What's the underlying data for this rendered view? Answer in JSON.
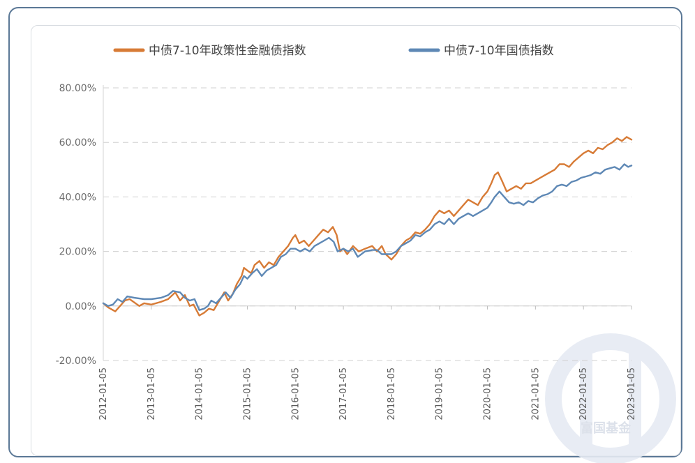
{
  "colors": {
    "policy_series": "#d77b36",
    "treasury_series": "#5e88b5",
    "grid": "#d0d0d0",
    "watermark": "#e4e8f0"
  },
  "watermark": {
    "icon": "fuguo-logo-icon",
    "text": "富国基金"
  },
  "chart_data": {
    "type": "line",
    "title": "",
    "xlabel": "",
    "ylabel": "",
    "ylim": [
      -0.2,
      0.8
    ],
    "yticks": [
      -0.2,
      0.0,
      0.2,
      0.4,
      0.6,
      0.8
    ],
    "ytick_labels": [
      "-20.00%",
      "0.00%",
      "20.00%",
      "40.00%",
      "60.00%",
      "80.00%"
    ],
    "y_format": "percent",
    "xlim": [
      2012.0,
      2023.0
    ],
    "xticks": [
      "2012-01-05",
      "2013-01-05",
      "2014-01-05",
      "2015-01-05",
      "2016-01-05",
      "2017-01-05",
      "2018-01-05",
      "2019-01-05",
      "2020-01-05",
      "2021-01-05",
      "2022-01-05",
      "2023-01-05"
    ],
    "grid": "horizontal-dashed",
    "legend_position": "top",
    "series": [
      {
        "name": "中债7-10年政策性金融债指数",
        "color": "#d77b36",
        "points": [
          [
            2012.0,
            0.01
          ],
          [
            2012.1,
            -0.005
          ],
          [
            2012.25,
            -0.02
          ],
          [
            2012.45,
            0.02
          ],
          [
            2012.55,
            0.025
          ],
          [
            2012.75,
            0.0
          ],
          [
            2012.85,
            0.01
          ],
          [
            2013.0,
            0.005
          ],
          [
            2013.2,
            0.015
          ],
          [
            2013.35,
            0.025
          ],
          [
            2013.5,
            0.05
          ],
          [
            2013.6,
            0.02
          ],
          [
            2013.7,
            0.04
          ],
          [
            2013.8,
            0.0
          ],
          [
            2013.88,
            0.005
          ],
          [
            2014.0,
            -0.035
          ],
          [
            2014.1,
            -0.025
          ],
          [
            2014.2,
            -0.01
          ],
          [
            2014.3,
            -0.015
          ],
          [
            2014.42,
            0.02
          ],
          [
            2014.52,
            0.05
          ],
          [
            2014.6,
            0.02
          ],
          [
            2014.7,
            0.045
          ],
          [
            2014.78,
            0.08
          ],
          [
            2014.88,
            0.11
          ],
          [
            2014.93,
            0.14
          ],
          [
            2015.0,
            0.13
          ],
          [
            2015.08,
            0.12
          ],
          [
            2015.15,
            0.15
          ],
          [
            2015.25,
            0.165
          ],
          [
            2015.35,
            0.14
          ],
          [
            2015.45,
            0.16
          ],
          [
            2015.55,
            0.15
          ],
          [
            2015.65,
            0.18
          ],
          [
            2015.75,
            0.2
          ],
          [
            2015.85,
            0.22
          ],
          [
            2015.95,
            0.25
          ],
          [
            2016.0,
            0.26
          ],
          [
            2016.08,
            0.23
          ],
          [
            2016.18,
            0.24
          ],
          [
            2016.28,
            0.22
          ],
          [
            2016.38,
            0.24
          ],
          [
            2016.48,
            0.26
          ],
          [
            2016.58,
            0.28
          ],
          [
            2016.68,
            0.27
          ],
          [
            2016.78,
            0.29
          ],
          [
            2016.86,
            0.26
          ],
          [
            2016.93,
            0.2
          ],
          [
            2017.0,
            0.21
          ],
          [
            2017.08,
            0.19
          ],
          [
            2017.2,
            0.22
          ],
          [
            2017.32,
            0.2
          ],
          [
            2017.45,
            0.21
          ],
          [
            2017.6,
            0.22
          ],
          [
            2017.7,
            0.2
          ],
          [
            2017.8,
            0.22
          ],
          [
            2017.88,
            0.19
          ],
          [
            2018.0,
            0.17
          ],
          [
            2018.1,
            0.19
          ],
          [
            2018.2,
            0.22
          ],
          [
            2018.3,
            0.24
          ],
          [
            2018.4,
            0.25
          ],
          [
            2018.5,
            0.27
          ],
          [
            2018.6,
            0.265
          ],
          [
            2018.7,
            0.28
          ],
          [
            2018.8,
            0.3
          ],
          [
            2018.9,
            0.33
          ],
          [
            2019.0,
            0.35
          ],
          [
            2019.1,
            0.34
          ],
          [
            2019.2,
            0.35
          ],
          [
            2019.3,
            0.33
          ],
          [
            2019.4,
            0.35
          ],
          [
            2019.5,
            0.37
          ],
          [
            2019.6,
            0.39
          ],
          [
            2019.7,
            0.38
          ],
          [
            2019.8,
            0.37
          ],
          [
            2019.9,
            0.4
          ],
          [
            2020.0,
            0.42
          ],
          [
            2020.08,
            0.45
          ],
          [
            2020.15,
            0.48
          ],
          [
            2020.22,
            0.49
          ],
          [
            2020.3,
            0.46
          ],
          [
            2020.4,
            0.42
          ],
          [
            2020.5,
            0.43
          ],
          [
            2020.6,
            0.44
          ],
          [
            2020.7,
            0.43
          ],
          [
            2020.8,
            0.45
          ],
          [
            2020.9,
            0.45
          ],
          [
            2021.0,
            0.46
          ],
          [
            2021.1,
            0.47
          ],
          [
            2021.2,
            0.48
          ],
          [
            2021.3,
            0.49
          ],
          [
            2021.4,
            0.5
          ],
          [
            2021.5,
            0.52
          ],
          [
            2021.6,
            0.52
          ],
          [
            2021.7,
            0.51
          ],
          [
            2021.8,
            0.53
          ],
          [
            2021.9,
            0.545
          ],
          [
            2022.0,
            0.56
          ],
          [
            2022.1,
            0.57
          ],
          [
            2022.2,
            0.56
          ],
          [
            2022.3,
            0.58
          ],
          [
            2022.4,
            0.575
          ],
          [
            2022.5,
            0.59
          ],
          [
            2022.6,
            0.6
          ],
          [
            2022.7,
            0.615
          ],
          [
            2022.8,
            0.605
          ],
          [
            2022.9,
            0.62
          ],
          [
            2023.0,
            0.61
          ]
        ]
      },
      {
        "name": "中债7-10年国债指数",
        "color": "#5e88b5",
        "points": [
          [
            2012.0,
            0.01
          ],
          [
            2012.1,
            0.0
          ],
          [
            2012.2,
            0.005
          ],
          [
            2012.3,
            0.025
          ],
          [
            2012.4,
            0.015
          ],
          [
            2012.5,
            0.035
          ],
          [
            2012.65,
            0.03
          ],
          [
            2012.85,
            0.025
          ],
          [
            2013.0,
            0.025
          ],
          [
            2013.2,
            0.03
          ],
          [
            2013.35,
            0.04
          ],
          [
            2013.45,
            0.055
          ],
          [
            2013.6,
            0.05
          ],
          [
            2013.7,
            0.03
          ],
          [
            2013.8,
            0.02
          ],
          [
            2013.9,
            0.025
          ],
          [
            2014.0,
            -0.015
          ],
          [
            2014.1,
            -0.01
          ],
          [
            2014.18,
            0.0
          ],
          [
            2014.25,
            0.02
          ],
          [
            2014.35,
            0.01
          ],
          [
            2014.45,
            0.03
          ],
          [
            2014.55,
            0.05
          ],
          [
            2014.65,
            0.03
          ],
          [
            2014.75,
            0.06
          ],
          [
            2014.85,
            0.08
          ],
          [
            2014.93,
            0.11
          ],
          [
            2015.0,
            0.1
          ],
          [
            2015.1,
            0.12
          ],
          [
            2015.2,
            0.135
          ],
          [
            2015.3,
            0.11
          ],
          [
            2015.4,
            0.13
          ],
          [
            2015.5,
            0.14
          ],
          [
            2015.6,
            0.15
          ],
          [
            2015.7,
            0.18
          ],
          [
            2015.8,
            0.19
          ],
          [
            2015.9,
            0.21
          ],
          [
            2016.0,
            0.21
          ],
          [
            2016.1,
            0.2
          ],
          [
            2016.2,
            0.21
          ],
          [
            2016.3,
            0.2
          ],
          [
            2016.4,
            0.22
          ],
          [
            2016.5,
            0.23
          ],
          [
            2016.6,
            0.24
          ],
          [
            2016.7,
            0.25
          ],
          [
            2016.8,
            0.235
          ],
          [
            2016.88,
            0.2
          ],
          [
            2017.0,
            0.21
          ],
          [
            2017.1,
            0.2
          ],
          [
            2017.2,
            0.21
          ],
          [
            2017.3,
            0.18
          ],
          [
            2017.45,
            0.2
          ],
          [
            2017.6,
            0.205
          ],
          [
            2017.7,
            0.205
          ],
          [
            2017.8,
            0.19
          ],
          [
            2017.9,
            0.19
          ],
          [
            2018.0,
            0.19
          ],
          [
            2018.1,
            0.2
          ],
          [
            2018.2,
            0.22
          ],
          [
            2018.3,
            0.23
          ],
          [
            2018.4,
            0.24
          ],
          [
            2018.5,
            0.26
          ],
          [
            2018.6,
            0.255
          ],
          [
            2018.7,
            0.27
          ],
          [
            2018.8,
            0.28
          ],
          [
            2018.9,
            0.3
          ],
          [
            2019.0,
            0.31
          ],
          [
            2019.1,
            0.3
          ],
          [
            2019.2,
            0.32
          ],
          [
            2019.3,
            0.3
          ],
          [
            2019.4,
            0.32
          ],
          [
            2019.5,
            0.33
          ],
          [
            2019.6,
            0.34
          ],
          [
            2019.7,
            0.33
          ],
          [
            2019.8,
            0.34
          ],
          [
            2019.9,
            0.35
          ],
          [
            2020.0,
            0.36
          ],
          [
            2020.08,
            0.38
          ],
          [
            2020.15,
            0.4
          ],
          [
            2020.25,
            0.42
          ],
          [
            2020.35,
            0.4
          ],
          [
            2020.45,
            0.38
          ],
          [
            2020.55,
            0.375
          ],
          [
            2020.65,
            0.38
          ],
          [
            2020.75,
            0.37
          ],
          [
            2020.85,
            0.385
          ],
          [
            2020.95,
            0.38
          ],
          [
            2021.05,
            0.395
          ],
          [
            2021.15,
            0.405
          ],
          [
            2021.25,
            0.41
          ],
          [
            2021.35,
            0.42
          ],
          [
            2021.45,
            0.44
          ],
          [
            2021.55,
            0.445
          ],
          [
            2021.65,
            0.44
          ],
          [
            2021.75,
            0.455
          ],
          [
            2021.85,
            0.46
          ],
          [
            2021.95,
            0.47
          ],
          [
            2022.05,
            0.475
          ],
          [
            2022.15,
            0.48
          ],
          [
            2022.25,
            0.49
          ],
          [
            2022.35,
            0.485
          ],
          [
            2022.45,
            0.5
          ],
          [
            2022.55,
            0.505
          ],
          [
            2022.65,
            0.51
          ],
          [
            2022.75,
            0.5
          ],
          [
            2022.85,
            0.52
          ],
          [
            2022.93,
            0.51
          ],
          [
            2023.0,
            0.515
          ]
        ]
      }
    ]
  }
}
